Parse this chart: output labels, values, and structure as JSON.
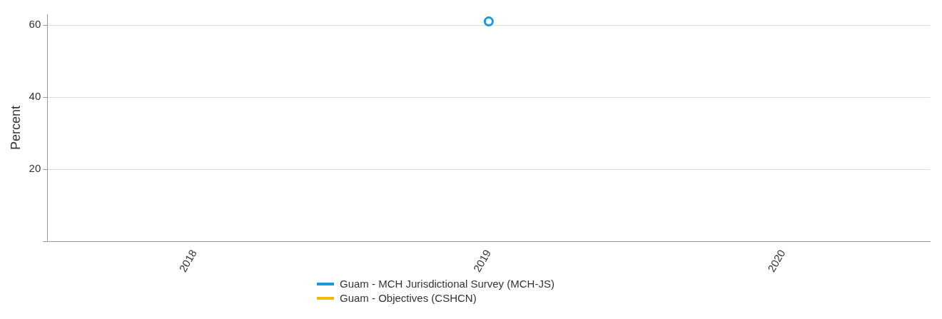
{
  "chart_data": {
    "type": "line",
    "ylabel": "Percent",
    "categories": [
      "2018",
      "2019",
      "2020"
    ],
    "series": [
      {
        "name": "Guam - MCH Jurisdictional Survey (MCH-JS)",
        "color": "#169bd8",
        "values": [
          null,
          61,
          null
        ]
      },
      {
        "name": "Guam - Objectives (CSHCN)",
        "color": "#f6b511",
        "values": [
          null,
          null,
          null
        ]
      }
    ],
    "ylim": [
      0,
      63
    ],
    "yticks": [
      {
        "value": 0,
        "label": null
      },
      20,
      40,
      60
    ],
    "grid": "y",
    "legend": "bottom",
    "marker": "circle"
  }
}
